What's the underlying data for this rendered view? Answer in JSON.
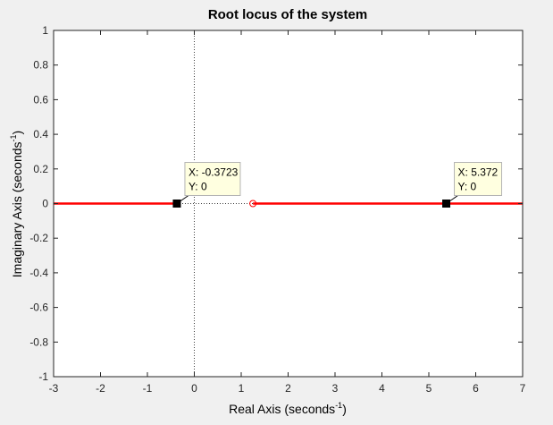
{
  "chart_data": {
    "type": "line",
    "title": "Root locus of the system",
    "xlabel": "Real Axis (seconds",
    "ylabel": "Imaginary Axis (seconds",
    "label_exponent": "-1",
    "label_close": ")",
    "xlim": [
      -3,
      7
    ],
    "ylim": [
      -1,
      1
    ],
    "xticks": [
      "-3",
      "-2",
      "-1",
      "0",
      "1",
      "2",
      "3",
      "4",
      "5",
      "6",
      "7"
    ],
    "yticks": [
      "1",
      "0.8",
      "0.6",
      "0.4",
      "0.2",
      "0",
      "-0.2",
      "-0.4",
      "-0.6",
      "-0.8",
      "-1"
    ],
    "grid": false,
    "reference_lines": {
      "x": 0,
      "y": 0,
      "style": "dotted"
    },
    "series": [
      {
        "color": "#ff0000",
        "x": [
          -3.0,
          -0.3723
        ],
        "y": [
          0,
          0
        ]
      },
      {
        "color": "#ff0000",
        "x": [
          1.25,
          7.0
        ],
        "y": [
          0,
          0
        ]
      }
    ],
    "zero": {
      "x": 1.25,
      "y": 0,
      "color": "#ff0000",
      "marker": "circle"
    },
    "datatips": [
      {
        "x_value": -0.3723,
        "y_value": 0,
        "x_text": "X: -0.3723",
        "y_text": "Y: 0"
      },
      {
        "x_value": 5.372,
        "y_value": 0,
        "x_text": "X: 5.372",
        "y_text": "Y: 0"
      }
    ]
  }
}
